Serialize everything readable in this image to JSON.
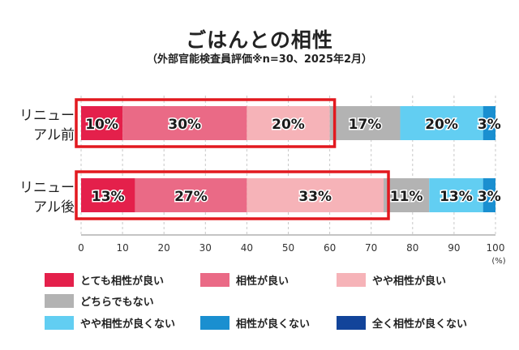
{
  "chart_data": {
    "type": "bar",
    "orientation": "horizontal",
    "stacked": true,
    "title": "ごはんとの相性",
    "subtitle": "（外部官能検査員評価※n=30、2025年2月）",
    "categories": [
      [
        "リニュー",
        "アル前"
      ],
      [
        "リニュー",
        "アル後"
      ]
    ],
    "series": [
      {
        "name": "とても相性が良い",
        "color": "#e4204b",
        "values": [
          10,
          13
        ],
        "labels": [
          "10%",
          "13%"
        ]
      },
      {
        "name": "相性が良い",
        "color": "#ea6a86",
        "values": [
          30,
          27
        ],
        "labels": [
          "30%",
          "27%"
        ]
      },
      {
        "name": "やや相性が良い",
        "color": "#f6b3b8",
        "values": [
          20,
          33
        ],
        "labels": [
          "20%",
          "33%"
        ]
      },
      {
        "name": "どちらでもない",
        "color": "#b3b3b3",
        "values": [
          17,
          11
        ],
        "labels": [
          "17%",
          "11%"
        ]
      },
      {
        "name": "やや相性が良くない",
        "color": "#62cef2",
        "values": [
          20,
          13
        ],
        "labels": [
          "20%",
          "13%"
        ]
      },
      {
        "name": "相性が良くない",
        "color": "#1a8fd0",
        "values": [
          3,
          3
        ],
        "labels": [
          "3%",
          "3%"
        ]
      },
      {
        "name": "全く相性が良くない",
        "color": "#12449a",
        "values": [
          0,
          0
        ],
        "labels": [
          "",
          ""
        ]
      }
    ],
    "highlight": {
      "color": "#e2191f",
      "series_count": 3
    },
    "xlim": [
      0,
      100
    ],
    "xticks": [
      0,
      10,
      20,
      30,
      40,
      50,
      60,
      70,
      80,
      90,
      100
    ],
    "xunit": "(%)",
    "grid": true,
    "legend_position": "bottom"
  }
}
